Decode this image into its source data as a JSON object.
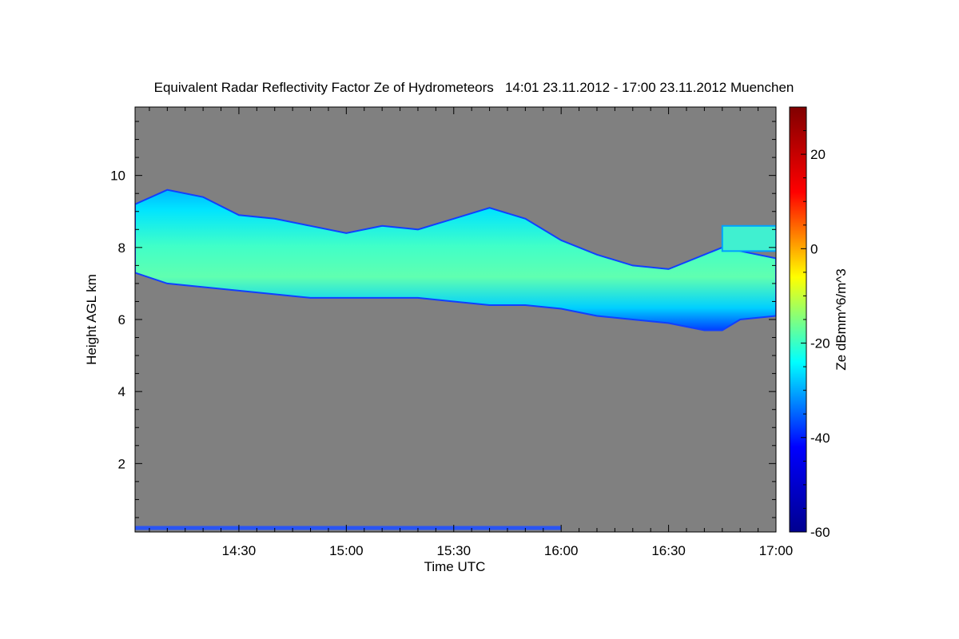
{
  "chart_data": {
    "type": "heatmap",
    "title": "Equivalent Radar Reflectivity Factor Ze of Hydrometeors   14:01 23.11.2012 - 17:00 23.11.2012 Muenchen",
    "xlabel": "Time UTC",
    "ylabel": "Height AGL km",
    "colorbar_label": "Ze dBmm^6/m^3",
    "xlim": [
      "14:01",
      "17:00"
    ],
    "x_tick_labels": [
      "14:30",
      "15:00",
      "15:30",
      "16:00",
      "16:30",
      "17:00"
    ],
    "ylim": [
      0.1,
      11.9
    ],
    "y_tick_labels": [
      "2",
      "4",
      "6",
      "8",
      "10"
    ],
    "colorbar_range": [
      -60,
      30
    ],
    "colorbar_tick_labels": [
      "-60",
      "-40",
      "-20",
      "0",
      "20"
    ],
    "colormap": [
      "#00008f",
      "#0000ff",
      "#00ffff",
      "#ffff00",
      "#ff0000",
      "#800000"
    ],
    "background_color": "#808080",
    "cloud_layer": {
      "time": [
        "14:01",
        "14:10",
        "14:20",
        "14:30",
        "14:40",
        "14:50",
        "15:00",
        "15:10",
        "15:20",
        "15:30",
        "15:40",
        "15:50",
        "16:00",
        "16:10",
        "16:20",
        "16:30",
        "16:40",
        "16:45",
        "16:50",
        "17:00"
      ],
      "top_km": [
        9.2,
        9.6,
        9.4,
        8.9,
        8.8,
        8.6,
        8.4,
        8.6,
        8.5,
        8.8,
        9.1,
        8.8,
        8.2,
        7.8,
        7.5,
        7.4,
        7.8,
        8.0,
        7.9,
        7.7
      ],
      "base_km": [
        7.3,
        7.0,
        6.9,
        6.8,
        6.7,
        6.6,
        6.6,
        6.6,
        6.6,
        6.5,
        6.4,
        6.4,
        6.3,
        6.1,
        6.0,
        5.9,
        5.7,
        5.7,
        6.0,
        6.1
      ],
      "core_ze_dbz": -22,
      "edge_ze_dbz": -40
    },
    "upper_cloud_patch": {
      "time_start": "16:45",
      "time_end": "17:00",
      "top_km": 8.6,
      "base_km": 7.9
    },
    "near_ground_echo": {
      "time_start": "14:01",
      "time_end": "16:00",
      "height_km": 0.2,
      "ze_dbz": -45
    }
  }
}
